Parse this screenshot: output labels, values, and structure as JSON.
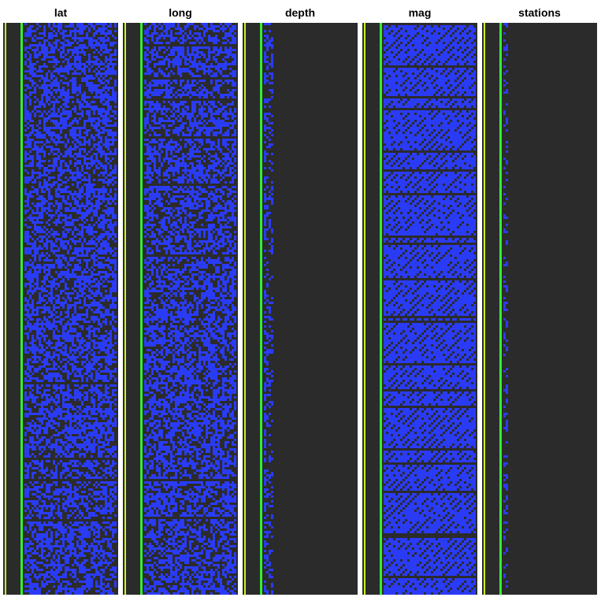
{
  "chart_data": {
    "type": "heatmap",
    "description_of_encoding": "bit-level pixel rendering of float values per row",
    "colors": {
      "background": "#2b2b2b",
      "bit_on": "#2a3bf5",
      "bit_off": "#2b2b2b",
      "sign_bit": "#33ee33",
      "sign_bit_alt": "#c8f520"
    },
    "panels": [
      {
        "title": "lat",
        "fill_fraction": 1.0,
        "texture": "noise"
      },
      {
        "title": "long",
        "fill_fraction": 1.0,
        "texture": "noise"
      },
      {
        "title": "depth",
        "fill_fraction": 0.27,
        "texture": "noise"
      },
      {
        "title": "mag",
        "fill_fraction": 1.0,
        "texture": "stripes"
      },
      {
        "title": "stations",
        "fill_fraction": 0.2,
        "texture": "noise"
      }
    ]
  }
}
